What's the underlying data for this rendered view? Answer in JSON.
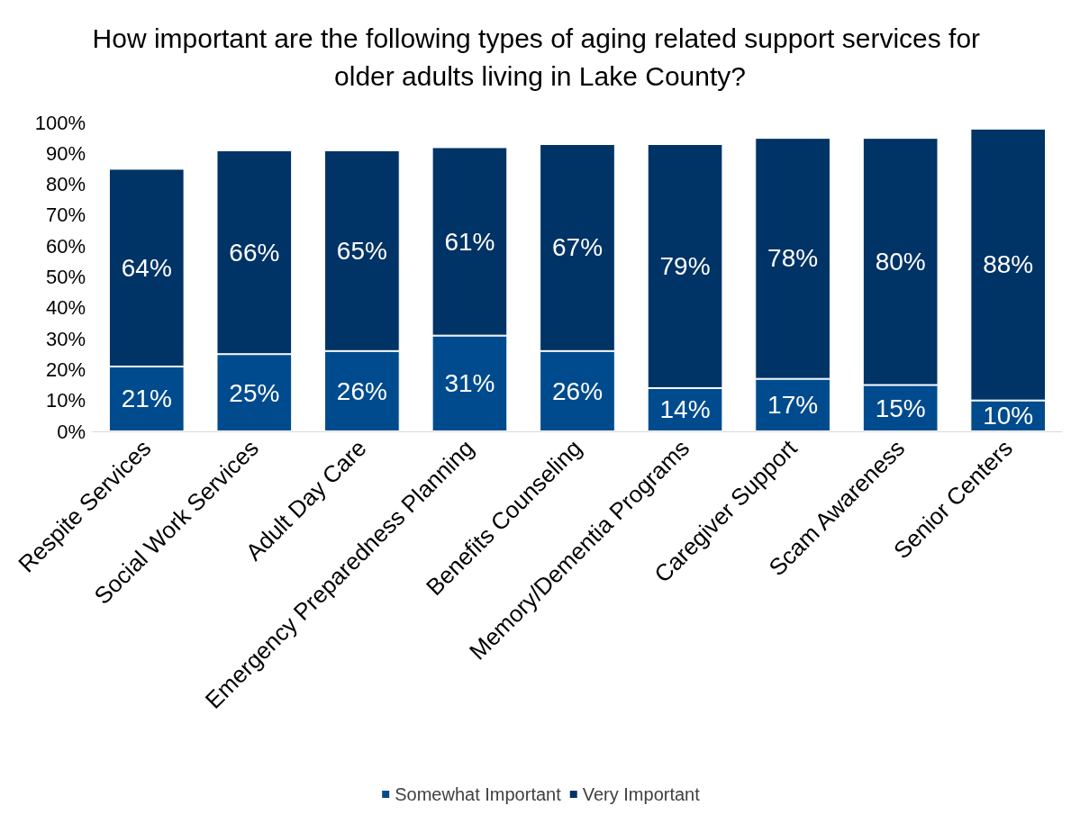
{
  "chart_data": {
    "type": "bar",
    "stacked": true,
    "title": "How important are the following types of aging related support services for older adults living in Lake County?",
    "categories": [
      "Respite Services",
      "Social Work Services",
      "Adult Day Care",
      "Emergency Preparedness Planning",
      "Benefits Counseling",
      "Memory/Dementia Programs",
      "Caregiver Support",
      "Scam Awareness",
      "Senior Centers"
    ],
    "series": [
      {
        "name": "Somewhat Important",
        "color": "#004b8d",
        "values": [
          21,
          25,
          26,
          31,
          26,
          14,
          17,
          15,
          10
        ],
        "value_labels": [
          "21%",
          "25%",
          "26%",
          "31%",
          "26%",
          "14%",
          "17%",
          "15%",
          "10%"
        ]
      },
      {
        "name": "Very Important",
        "color": "#003366",
        "values": [
          64,
          66,
          65,
          61,
          67,
          79,
          78,
          80,
          88
        ],
        "value_labels": [
          "64%",
          "66%",
          "65%",
          "61%",
          "67%",
          "79%",
          "78%",
          "80%",
          "88%"
        ]
      }
    ],
    "ylim": [
      0,
      100
    ],
    "yticks": [
      {
        "value": 0,
        "label": "0%"
      },
      {
        "value": 10,
        "label": "10%"
      },
      {
        "value": 20,
        "label": "20%"
      },
      {
        "value": 30,
        "label": "30%"
      },
      {
        "value": 40,
        "label": "40%"
      },
      {
        "value": 50,
        "label": "50%"
      },
      {
        "value": 60,
        "label": "60%"
      },
      {
        "value": 70,
        "label": "70%"
      },
      {
        "value": 80,
        "label": "80%"
      },
      {
        "value": 90,
        "label": "90%"
      },
      {
        "value": 100,
        "label": "100%"
      }
    ],
    "grid": false,
    "legend": "bottom"
  }
}
